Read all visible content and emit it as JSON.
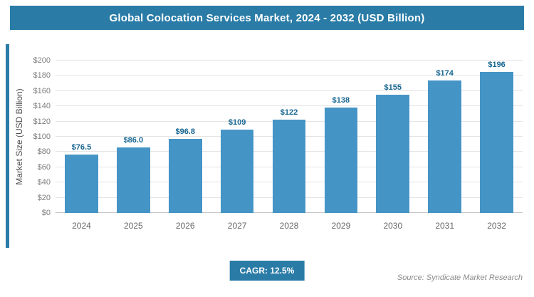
{
  "header": {
    "title": "Global Colocation Services Market, 2024 - 2032 (USD Billion)"
  },
  "chart_data": {
    "type": "bar",
    "title": "Global Colocation Services Market, 2024 - 2032 (USD Billion)",
    "categories": [
      "2024",
      "2025",
      "2026",
      "2027",
      "2028",
      "2029",
      "2030",
      "2031",
      "2032"
    ],
    "values": [
      76.5,
      86.0,
      96.8,
      109,
      122,
      138,
      155,
      174,
      196
    ],
    "value_labels": [
      "$76.5",
      "$86.0",
      "$96.8",
      "$109",
      "$122",
      "$138",
      "$155",
      "$174",
      "$196"
    ],
    "xlabel": "",
    "ylabel": "Market Size (USD Billion)",
    "ylim": [
      0,
      200
    ],
    "ytick_step": 20,
    "ytick_labels": [
      "$0",
      "$20",
      "$40",
      "$60",
      "$80",
      "$100",
      "$120",
      "$140",
      "$160",
      "$180",
      "$200"
    ],
    "grid": true,
    "legend": "none"
  },
  "footer": {
    "cagr_label": "CAGR: 12.5%",
    "source": "Source: Syndicate Market Research"
  },
  "colors": {
    "header_bg": "#2a7ca7",
    "accent": "#2a7ca7",
    "bar": "#4594c6",
    "value_label": "#176691",
    "cagr_bg": "#2a7ca7",
    "axis_text": "#7d7d7d"
  }
}
